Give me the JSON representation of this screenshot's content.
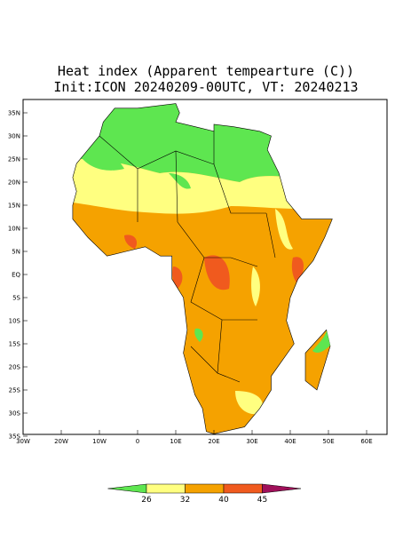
{
  "title": {
    "line1": "Heat index (Apparent tempearture (C))",
    "line2": "Init:ICON 20240209-00UTC, VT: 20240213"
  },
  "map": {
    "lon_labels": [
      "30W",
      "20W",
      "10W",
      "0",
      "10E",
      "20E",
      "30E",
      "40E",
      "50E",
      "60E"
    ],
    "lat_labels": [
      "35N",
      "30N",
      "25N",
      "20N",
      "15N",
      "10N",
      "5N",
      "EQ",
      "5S",
      "10S",
      "15S",
      "20S",
      "25S",
      "30S",
      "35S"
    ]
  },
  "colorbar": {
    "levels": [
      26,
      32,
      40,
      45
    ],
    "colors": [
      "#5ee650",
      "#ffff80",
      "#f5a200",
      "#f05a1e",
      "#a0105a"
    ]
  }
}
